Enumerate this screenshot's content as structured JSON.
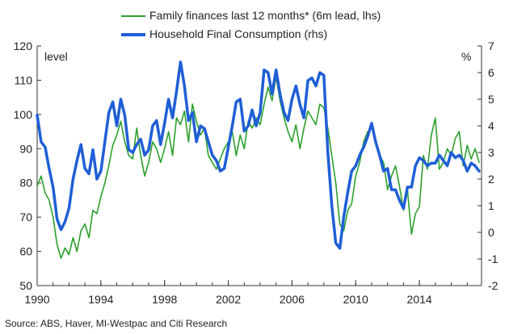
{
  "chart_data": {
    "type": "line",
    "legend": [
      {
        "label": "Family finances last 12 months* (6m lead, lhs)",
        "color": "#2ca02c"
      },
      {
        "label": "Household Final Consumption (rhs)",
        "color": "#1f5fd6"
      }
    ],
    "left_axis": {
      "label": "level",
      "min": 50,
      "max": 120,
      "ticks": [
        50,
        60,
        70,
        80,
        90,
        100,
        110,
        120
      ]
    },
    "right_axis": {
      "label": "%",
      "min": -2,
      "max": 7,
      "ticks": [
        -2,
        -1,
        0,
        1,
        2,
        3,
        4,
        5,
        6,
        7
      ]
    },
    "x_axis": {
      "min": 1990,
      "max": 2017.9,
      "ticks": [
        1990,
        1994,
        1998,
        2002,
        2006,
        2010,
        2014
      ]
    },
    "grid": false,
    "series": [
      {
        "name": "Family finances last 12 months* (6m lead, lhs)",
        "axis": "left",
        "color": "#2ca02c",
        "x": [
          1990.0,
          1990.25,
          1990.5,
          1990.75,
          1991.0,
          1991.25,
          1991.5,
          1991.75,
          1992.0,
          1992.25,
          1992.5,
          1992.75,
          1993.0,
          1993.25,
          1993.5,
          1993.75,
          1994.0,
          1994.25,
          1994.5,
          1994.75,
          1995.0,
          1995.25,
          1995.5,
          1995.75,
          1996.0,
          1996.25,
          1996.5,
          1996.75,
          1997.0,
          1997.25,
          1997.5,
          1997.75,
          1998.0,
          1998.25,
          1998.5,
          1998.75,
          1999.0,
          1999.25,
          1999.5,
          1999.75,
          2000.0,
          2000.25,
          2000.5,
          2000.75,
          2001.0,
          2001.25,
          2001.5,
          2001.75,
          2002.0,
          2002.25,
          2002.5,
          2002.75,
          2003.0,
          2003.25,
          2003.5,
          2003.75,
          2004.0,
          2004.25,
          2004.5,
          2004.75,
          2005.0,
          2005.25,
          2005.5,
          2005.75,
          2006.0,
          2006.25,
          2006.5,
          2006.75,
          2007.0,
          2007.25,
          2007.5,
          2007.75,
          2008.0,
          2008.25,
          2008.5,
          2008.75,
          2009.0,
          2009.25,
          2009.5,
          2009.75,
          2010.0,
          2010.25,
          2010.5,
          2010.75,
          2011.0,
          2011.25,
          2011.5,
          2011.75,
          2012.0,
          2012.25,
          2012.5,
          2012.75,
          2013.0,
          2013.25,
          2013.5,
          2013.75,
          2014.0,
          2014.25,
          2014.5,
          2014.75,
          2015.0,
          2015.25,
          2015.5,
          2015.75,
          2016.0,
          2016.25,
          2016.5,
          2016.75,
          2017.0,
          2017.25,
          2017.5,
          2017.75
        ],
        "values": [
          79,
          82,
          77,
          75,
          70,
          62,
          58,
          61,
          59,
          64,
          60,
          66,
          68,
          64,
          72,
          71,
          76,
          80,
          85,
          91,
          94,
          98,
          92,
          88,
          87,
          96,
          88,
          82,
          86,
          92,
          90,
          86,
          90,
          95,
          88,
          99,
          97,
          101,
          92,
          103,
          98,
          94,
          96,
          88,
          86,
          84,
          87,
          90,
          92,
          95,
          88,
          94,
          90,
          98,
          96,
          99,
          97,
          103,
          108,
          104,
          111,
          104,
          99,
          95,
          92,
          97,
          90,
          96,
          101,
          99,
          97,
          103,
          102,
          96,
          88,
          80,
          68,
          66,
          72,
          74,
          82,
          86,
          92,
          95,
          96,
          93,
          88,
          86,
          78,
          82,
          85,
          79,
          72,
          78,
          65,
          71,
          73,
          88,
          84,
          94,
          99,
          84,
          86,
          90,
          88,
          93,
          95,
          85,
          91,
          87,
          90,
          86
        ]
      },
      {
        "name": "Household Final Consumption (rhs)",
        "axis": "right",
        "color": "#1f5fd6",
        "x": [
          1990.0,
          1990.25,
          1990.5,
          1990.75,
          1991.0,
          1991.25,
          1991.5,
          1991.75,
          1992.0,
          1992.25,
          1992.5,
          1992.75,
          1993.0,
          1993.25,
          1993.5,
          1993.75,
          1994.0,
          1994.25,
          1994.5,
          1994.75,
          1995.0,
          1995.25,
          1995.5,
          1995.75,
          1996.0,
          1996.25,
          1996.5,
          1996.75,
          1997.0,
          1997.25,
          1997.5,
          1997.75,
          1998.0,
          1998.25,
          1998.5,
          1998.75,
          1999.0,
          1999.25,
          1999.5,
          1999.75,
          2000.0,
          2000.25,
          2000.5,
          2000.75,
          2001.0,
          2001.25,
          2001.5,
          2001.75,
          2002.0,
          2002.25,
          2002.5,
          2002.75,
          2003.0,
          2003.25,
          2003.5,
          2003.75,
          2004.0,
          2004.25,
          2004.5,
          2004.75,
          2005.0,
          2005.25,
          2005.5,
          2005.75,
          2006.0,
          2006.25,
          2006.5,
          2006.75,
          2007.0,
          2007.25,
          2007.5,
          2007.75,
          2008.0,
          2008.25,
          2008.5,
          2008.75,
          2009.0,
          2009.25,
          2009.5,
          2009.75,
          2010.0,
          2010.25,
          2010.5,
          2010.75,
          2011.0,
          2011.25,
          2011.5,
          2011.75,
          2012.0,
          2012.25,
          2012.5,
          2012.75,
          2013.0,
          2013.25,
          2013.5,
          2013.75,
          2014.0,
          2014.25,
          2014.5,
          2014.75,
          2015.0,
          2015.25,
          2015.5,
          2015.75,
          2016.0,
          2016.25,
          2016.5,
          2016.75,
          2017.0,
          2017.25,
          2017.5,
          2017.75
        ],
        "values": [
          4.4,
          3.4,
          3.2,
          2.4,
          1.7,
          0.5,
          0.1,
          0.4,
          0.9,
          2.0,
          2.7,
          3.3,
          2.4,
          2.2,
          3.1,
          2.0,
          2.3,
          3.4,
          4.5,
          4.9,
          4.0,
          5.0,
          4.4,
          3.1,
          3.0,
          3.3,
          3.5,
          2.9,
          3.1,
          4.0,
          4.2,
          3.3,
          4.1,
          5.0,
          4.3,
          5.3,
          6.4,
          5.5,
          4.2,
          4.5,
          3.4,
          4.0,
          3.9,
          3.4,
          2.9,
          2.7,
          2.3,
          2.4,
          3.2,
          4.0,
          4.9,
          5.0,
          3.8,
          4.0,
          4.6,
          4.0,
          4.5,
          6.1,
          6.0,
          5.2,
          6.1,
          5.2,
          4.5,
          4.2,
          5.0,
          5.5,
          4.8,
          4.3,
          5.7,
          5.8,
          5.5,
          6.0,
          5.9,
          3.0,
          1.0,
          -0.4,
          -0.6,
          0.6,
          1.5,
          2.3,
          2.5,
          2.9,
          3.2,
          3.6,
          4.1,
          3.4,
          2.9,
          2.3,
          2.4,
          1.6,
          1.6,
          1.2,
          0.9,
          1.7,
          1.7,
          2.5,
          2.8,
          2.7,
          2.5,
          2.6,
          2.6,
          2.9,
          2.7,
          2.5,
          3.0,
          2.8,
          2.9,
          2.7,
          2.3,
          2.6,
          2.5,
          2.3
        ]
      }
    ]
  },
  "source_text": "Source: ABS, Haver, MI-Westpac and Citi Research"
}
